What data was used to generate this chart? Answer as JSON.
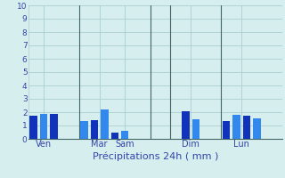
{
  "xlabel": "Précipitations 24h ( mm )",
  "ylim": [
    0,
    10
  ],
  "yticks": [
    0,
    1,
    2,
    3,
    4,
    5,
    6,
    7,
    8,
    9,
    10
  ],
  "background_color": "#d7eeee",
  "grid_color": "#aacece",
  "bars": [
    {
      "x": 0,
      "height": 1.75,
      "color": "#1133bb"
    },
    {
      "x": 1,
      "height": 1.85,
      "color": "#3388ee"
    },
    {
      "x": 2,
      "height": 1.85,
      "color": "#1133bb"
    },
    {
      "x": 5,
      "height": 1.35,
      "color": "#3388ee"
    },
    {
      "x": 6,
      "height": 1.4,
      "color": "#1133bb"
    },
    {
      "x": 7,
      "height": 2.2,
      "color": "#3388ee"
    },
    {
      "x": 8,
      "height": 0.45,
      "color": "#1133bb"
    },
    {
      "x": 9,
      "height": 0.6,
      "color": "#3388ee"
    },
    {
      "x": 15,
      "height": 2.05,
      "color": "#1133bb"
    },
    {
      "x": 16,
      "height": 1.5,
      "color": "#3388ee"
    },
    {
      "x": 19,
      "height": 1.35,
      "color": "#1133bb"
    },
    {
      "x": 20,
      "height": 1.8,
      "color": "#3388ee"
    },
    {
      "x": 21,
      "height": 1.75,
      "color": "#1133bb"
    },
    {
      "x": 22,
      "height": 1.55,
      "color": "#3388ee"
    }
  ],
  "day_labels": [
    {
      "x": 1,
      "label": "Ven"
    },
    {
      "x": 6.5,
      "label": "Mar"
    },
    {
      "x": 9,
      "label": "Sam"
    },
    {
      "x": 15.5,
      "label": "Dim"
    },
    {
      "x": 20.5,
      "label": "Lun"
    }
  ],
  "vlines": [
    4.5,
    11.5,
    13.5,
    18.5
  ],
  "xlim": [
    -0.5,
    24.5
  ],
  "bar_width": 0.75
}
